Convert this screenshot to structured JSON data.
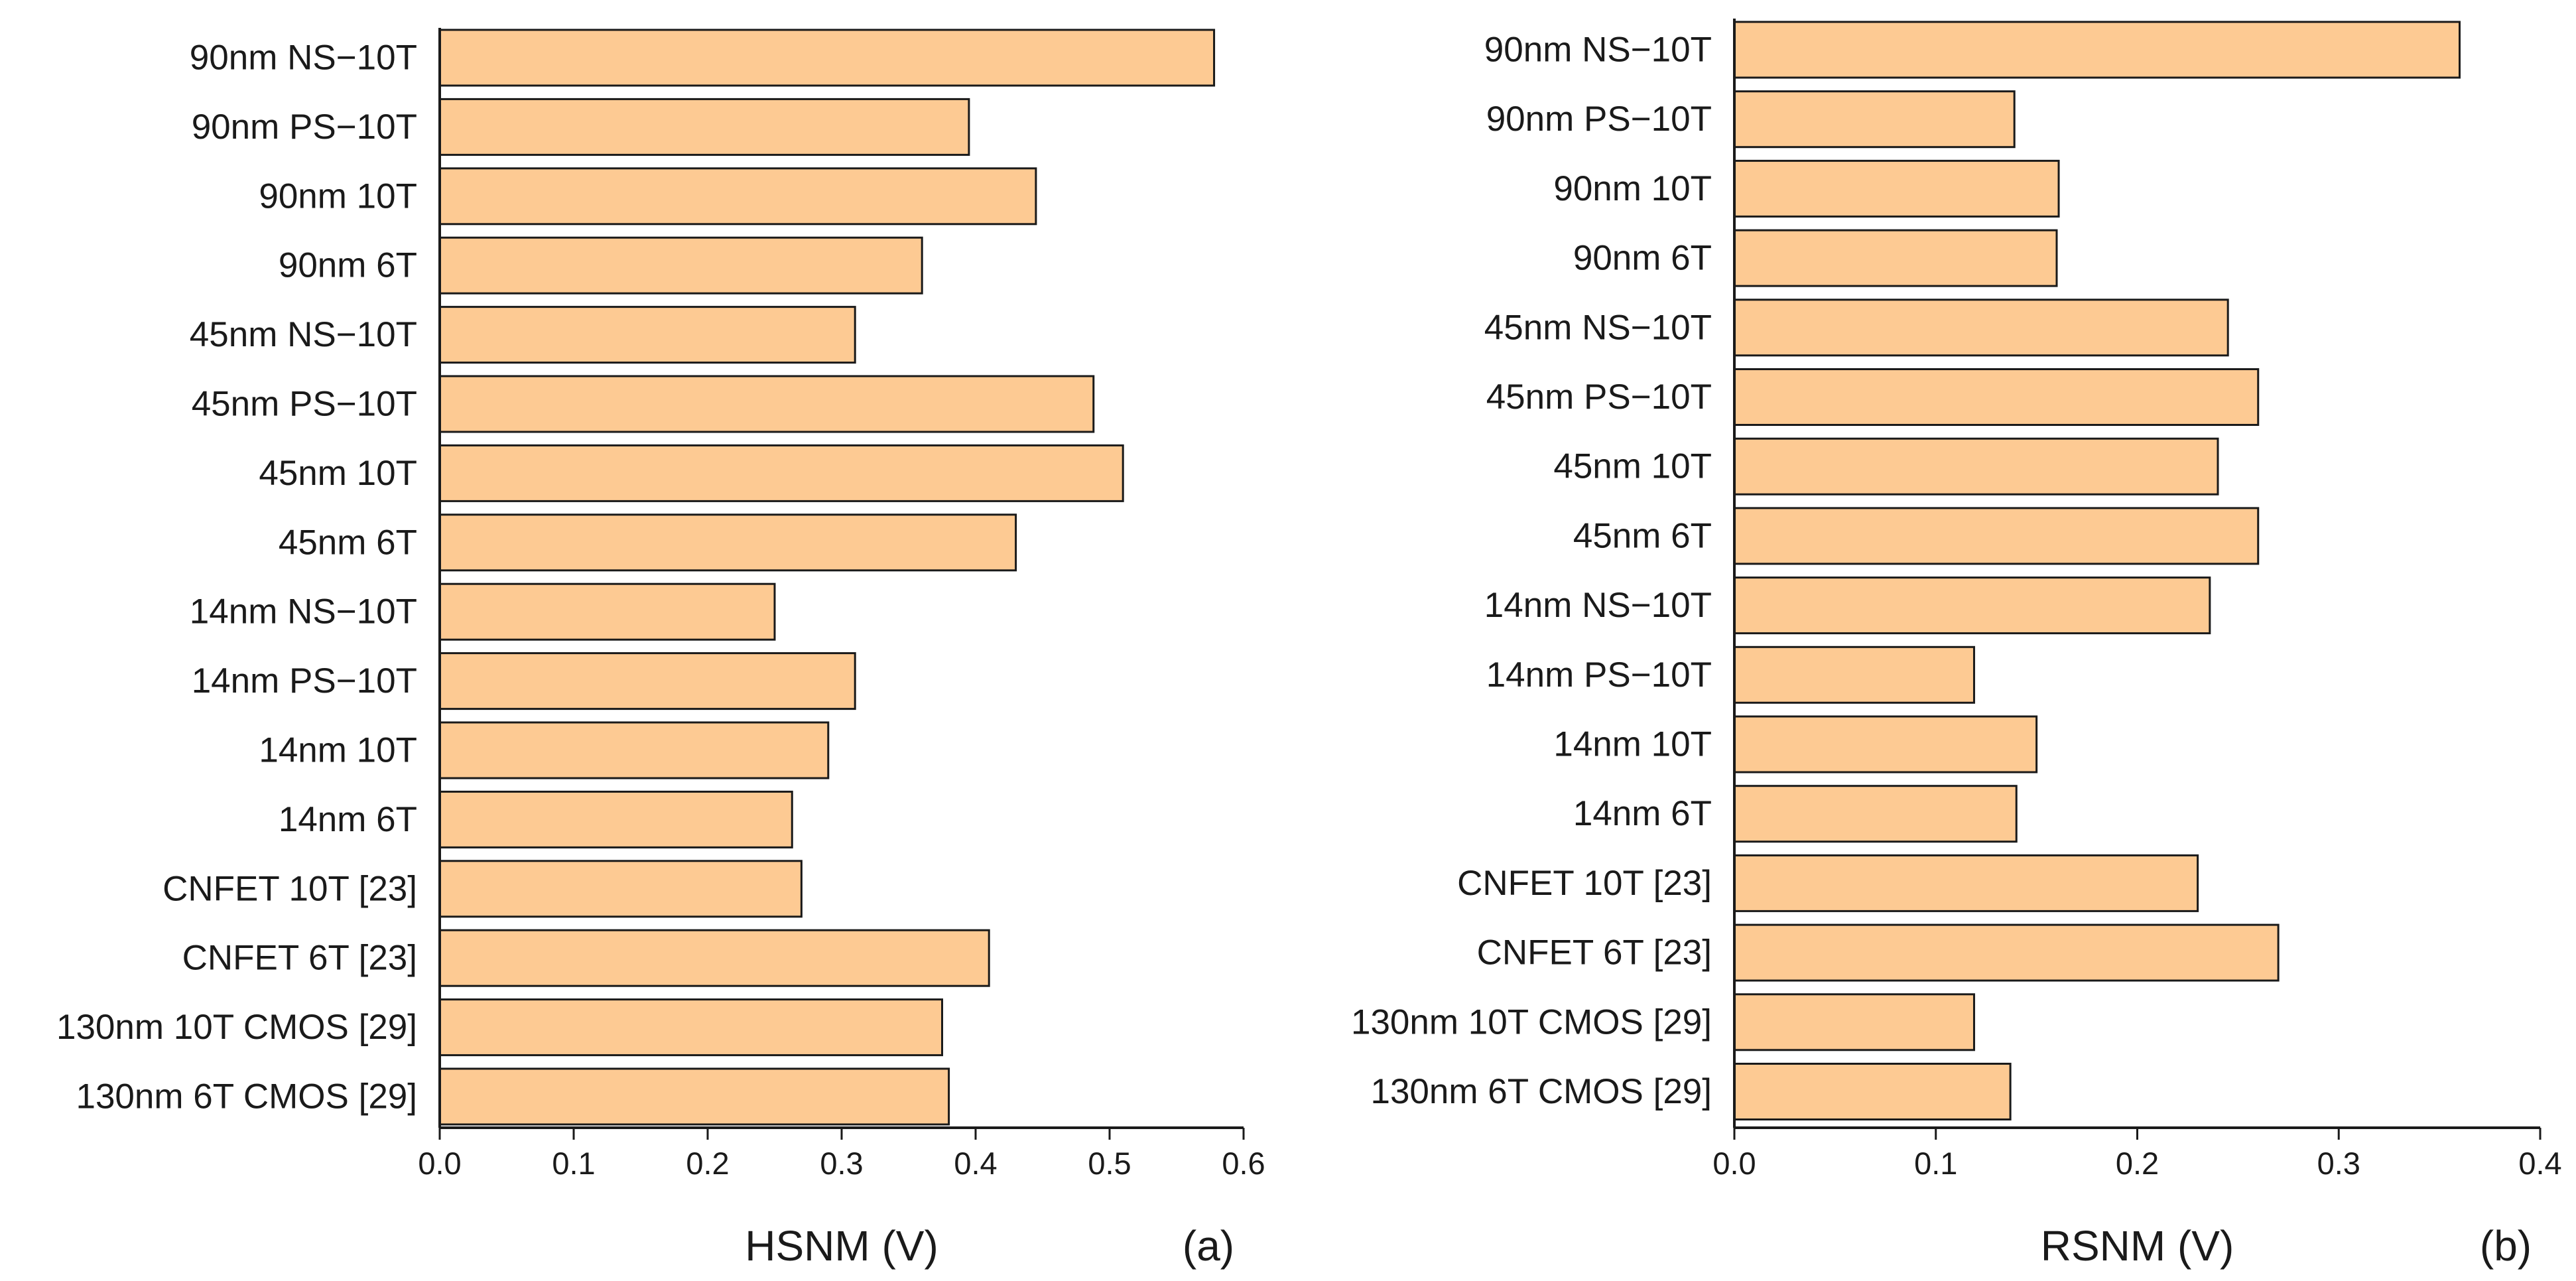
{
  "chart_data": [
    {
      "type": "bar",
      "orientation": "horizontal",
      "panel_label": "(a)",
      "xlabel": "HSNM (V)",
      "ylabel": "",
      "xlim": [
        0,
        0.6
      ],
      "xticks": [
        "0.0",
        "0.1",
        "0.2",
        "0.3",
        "0.4",
        "0.5",
        "0.6"
      ],
      "bar_color": "#fdca93",
      "categories": [
        "90nm NS−10T",
        "90nm PS−10T",
        "90nm 10T",
        "90nm 6T",
        "45nm NS−10T",
        "45nm PS−10T",
        "45nm 10T",
        "45nm 6T",
        "14nm NS−10T",
        "14nm PS−10T",
        "14nm 10T",
        "14nm 6T",
        "CNFET 10T [23]",
        "CNFET 6T [23]",
        "130nm 10T CMOS [29]",
        "130nm 6T CMOS [29]"
      ],
      "values": [
        0.578,
        0.395,
        0.445,
        0.36,
        0.31,
        0.488,
        0.51,
        0.43,
        0.25,
        0.31,
        0.29,
        0.263,
        0.27,
        0.41,
        0.375,
        0.38
      ]
    },
    {
      "type": "bar",
      "orientation": "horizontal",
      "panel_label": "(b)",
      "xlabel": "RSNM (V)",
      "ylabel": "",
      "xlim": [
        0,
        0.4
      ],
      "xticks": [
        "0.0",
        "0.1",
        "0.2",
        "0.3",
        "0.4"
      ],
      "bar_color": "#fdca93",
      "categories": [
        "90nm NS−10T",
        "90nm PS−10T",
        "90nm 10T",
        "90nm 6T",
        "45nm NS−10T",
        "45nm PS−10T",
        "45nm 10T",
        "45nm 6T",
        "14nm NS−10T",
        "14nm PS−10T",
        "14nm 10T",
        "14nm 6T",
        "CNFET 10T [23]",
        "CNFET 6T [23]",
        "130nm 10T CMOS [29]",
        "130nm 6T CMOS [29]"
      ],
      "values": [
        0.36,
        0.139,
        0.161,
        0.16,
        0.245,
        0.26,
        0.24,
        0.26,
        0.236,
        0.119,
        0.15,
        0.14,
        0.23,
        0.27,
        0.119,
        0.137
      ]
    }
  ]
}
